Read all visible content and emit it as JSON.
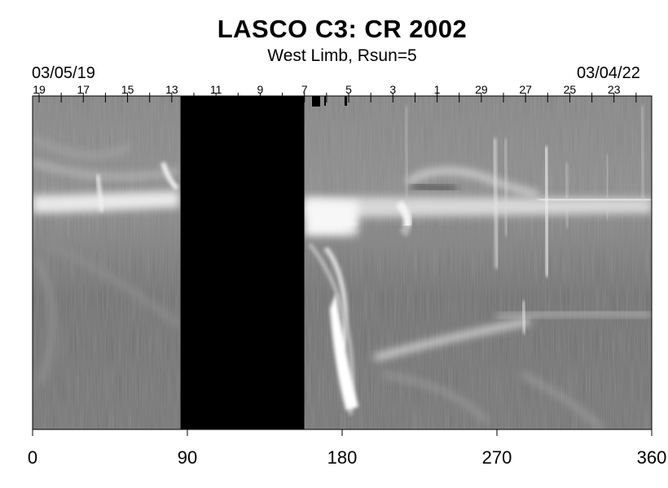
{
  "title": "LASCO C3: CR 2002",
  "subtitle": "West Limb, Rsun=5",
  "date_start": "03/05/19",
  "date_end": "03/04/22",
  "colors": {
    "background": "#ffffff",
    "data_gap": "#000000",
    "image_base": "#7a7a7a",
    "image_bright": "#ffffff"
  },
  "chart_data": {
    "type": "heatmap",
    "xlim": [
      0,
      360
    ],
    "x_ticks": [
      "0",
      "90",
      "180",
      "270",
      "360"
    ],
    "day_labels": [
      "19",
      "17",
      "15",
      "13",
      "11",
      "9",
      "7",
      "5",
      "3",
      "1",
      "29",
      "27",
      "25",
      "23"
    ],
    "data_gap_deg": [
      86,
      158
    ]
  }
}
